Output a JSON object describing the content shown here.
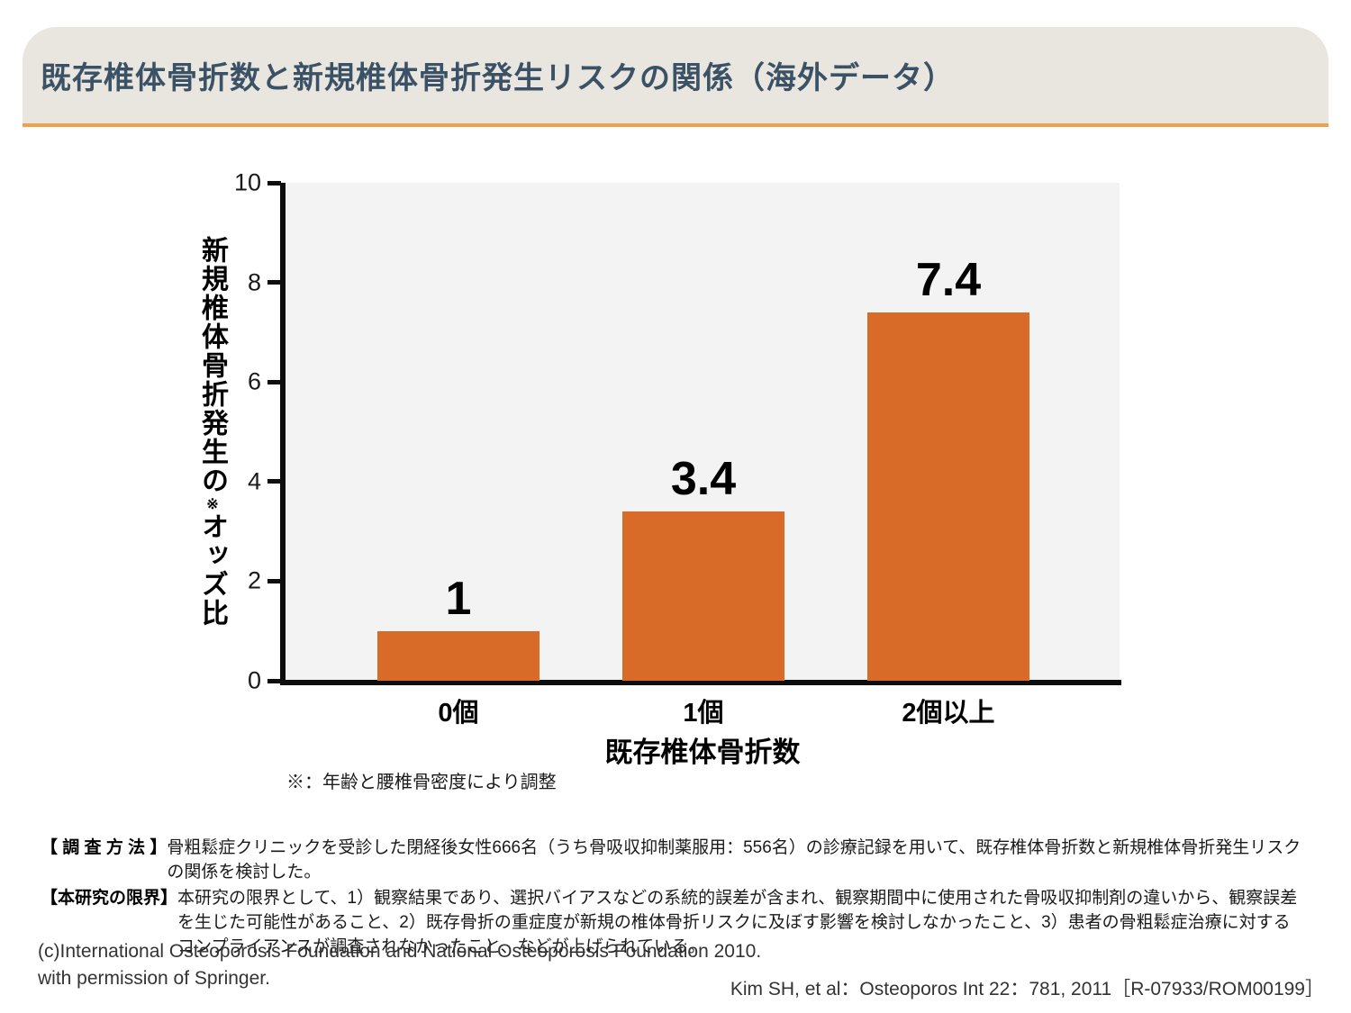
{
  "header": {
    "title": "既存椎体骨折数と新規椎体骨折発生リスクの関係（海外データ）"
  },
  "chart_data": {
    "type": "bar",
    "categories": [
      "0個",
      "1個",
      "2個以上"
    ],
    "values": [
      1,
      3.4,
      7.4
    ],
    "value_labels": [
      "1",
      "3.4",
      "7.4"
    ],
    "xlabel": "既存椎体骨折数",
    "ylabel_main": "新規椎体骨折発生の",
    "ylabel_sup": "※",
    "ylabel_rest": "オッズ比",
    "ylim": [
      0,
      10
    ],
    "yticks": [
      0,
      2,
      4,
      6,
      8,
      10
    ],
    "grid": false,
    "legend": null,
    "bar_color": "#D96B28",
    "plot_bg_color": "#F4F3F3",
    "footnote": "※：年齢と腰椎骨密度により調整"
  },
  "notes": {
    "method_label": "【 調 査 方 法 】",
    "method_text": "骨粗鬆症クリニックを受診した閉経後女性666名（うち骨吸収抑制薬服用：556名）の診療記録を用いて、既存椎体骨折数と新規椎体骨折発生リスクの関係を検討した。",
    "limitation_label": "【本研究の限界】",
    "limitation_text": "本研究の限界として、1）観察結果であり、選択バイアスなどの系統的誤差が含まれ、観察期間中に使用された骨吸収抑制剤の違いから、観察誤差を生じた可能性があること、2）既存骨折の重症度が新規の椎体骨折リスクに及ぼす影響を検討しなかったこと、3）患者の骨粗鬆症治療に対するコンプライアンスが調査されなかったこと、などが上げられている。"
  },
  "footer": {
    "copyright_line1": "(c)International Osteoporosis Foundation and National Osteoporosis Foundation 2010.",
    "copyright_line2": "with permission of Springer.",
    "citation": "Kim SH, et al：Osteoporos Int 22：781, 2011［R-07933/ROM00199］"
  },
  "colors": {
    "header_background": "#E9E6DF",
    "header_underline": "#EDA14E",
    "title_text": "#3B5266",
    "bar": "#D96B28",
    "plot_background": "#F4F3F3",
    "axis": "#0d0d0d"
  }
}
